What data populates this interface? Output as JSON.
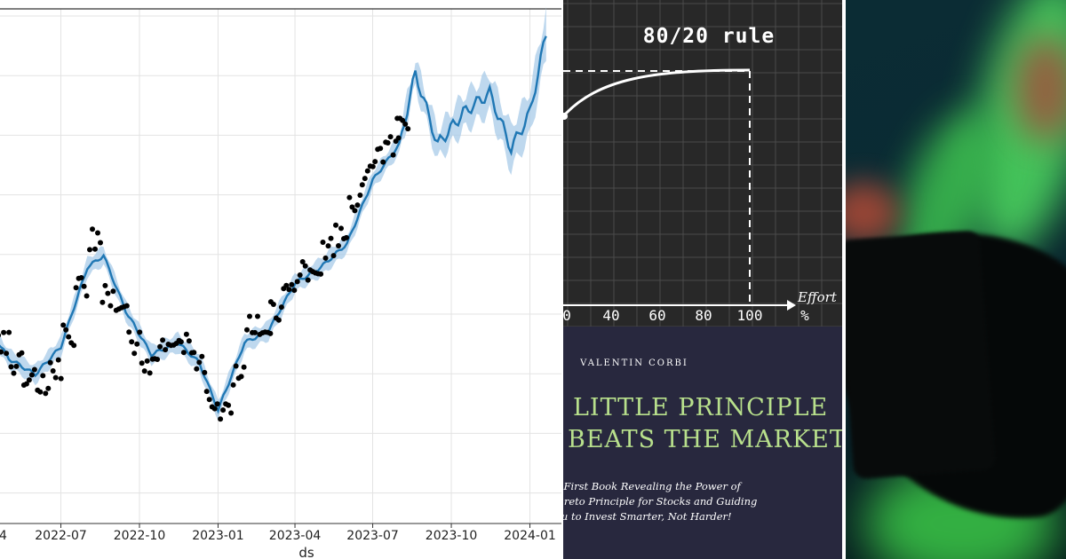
{
  "chart_data": {
    "type": "line",
    "title": "",
    "xlabel": "ds",
    "ylabel": "",
    "x_tick_labels": [
      "2022-07",
      "2022-10",
      "2023-01",
      "2023-04",
      "2023-07",
      "2023-10",
      "2024-01"
    ],
    "x_tick_edge_label": "4",
    "grid": true,
    "series": [
      {
        "kind": "observed-points",
        "x": [
          "2022-04-10",
          "2022-04-25",
          "2022-05-10",
          "2022-05-25",
          "2022-06-10",
          "2022-06-25",
          "2022-07-10",
          "2022-07-25",
          "2022-08-10",
          "2022-08-25",
          "2022-09-10",
          "2022-09-25",
          "2022-10-10",
          "2022-10-25",
          "2022-11-10",
          "2022-11-25",
          "2022-12-10",
          "2022-12-25",
          "2023-01-10",
          "2023-01-25",
          "2023-02-10",
          "2023-02-25",
          "2023-03-10",
          "2023-03-25",
          "2023-04-10",
          "2023-04-25",
          "2023-05-10",
          "2023-05-25",
          "2023-06-10",
          "2023-06-25",
          "2023-07-10",
          "2023-07-25",
          "2023-08-05"
        ],
        "y": [
          0.46,
          0.38,
          0.33,
          0.3,
          0.27,
          0.31,
          0.4,
          0.52,
          0.64,
          0.5,
          0.45,
          0.38,
          0.32,
          0.36,
          0.4,
          0.38,
          0.33,
          0.24,
          0.2,
          0.3,
          0.42,
          0.38,
          0.46,
          0.52,
          0.56,
          0.58,
          0.62,
          0.65,
          0.74,
          0.8,
          0.86,
          0.88,
          0.92
        ]
      },
      {
        "kind": "forecast-line",
        "x": [
          "2022-04-01",
          "2022-05-01",
          "2022-06-01",
          "2022-07-01",
          "2022-08-01",
          "2022-08-20",
          "2022-09-15",
          "2022-10-15",
          "2022-11-15",
          "2022-12-10",
          "2023-01-01",
          "2023-02-01",
          "2023-03-01",
          "2023-04-01",
          "2023-05-01",
          "2023-06-01",
          "2023-07-01",
          "2023-08-01",
          "2023-08-20",
          "2023-09-15",
          "2023-10-15",
          "2023-11-15",
          "2023-12-10",
          "2024-01-01",
          "2024-01-20"
        ],
        "y": [
          0.44,
          0.34,
          0.3,
          0.37,
          0.57,
          0.6,
          0.46,
          0.35,
          0.38,
          0.33,
          0.21,
          0.38,
          0.41,
          0.53,
          0.57,
          0.63,
          0.79,
          0.88,
          1.06,
          0.88,
          0.96,
          1.01,
          0.87,
          0.96,
          1.16
        ]
      }
    ],
    "colors": {
      "forecast": "#1f77b4",
      "band": "#a8cbe8",
      "points": "#000000",
      "grid": "#e3e3e3"
    }
  },
  "book": {
    "chart_title": "80/20 rule",
    "axis_ticks": [
      "0",
      "40",
      "60",
      "80",
      "100"
    ],
    "axis_unit": "%",
    "axis_label": "Effort",
    "author": "VALENTIN CORBI",
    "title_line_1": "LITTLE PRINCIPLE",
    "title_line_2": "BEATS THE MARKET",
    "subtitle_line_1": "e First Book Revealing the Power of",
    "subtitle_line_2": "areto Principle for Stocks and Guiding",
    "subtitle_line_3": "ou to Invest Smarter, Not Harder!",
    "colors": {
      "cover_top": "#282828",
      "cover_bottom": "#28283e",
      "title": "#b8e08c"
    }
  },
  "photo": {
    "description_icon": "stock-chart-phone-photo",
    "colors": {
      "green": "#4bd35f",
      "red": "#a8483a",
      "background": "#0a2a33"
    }
  }
}
